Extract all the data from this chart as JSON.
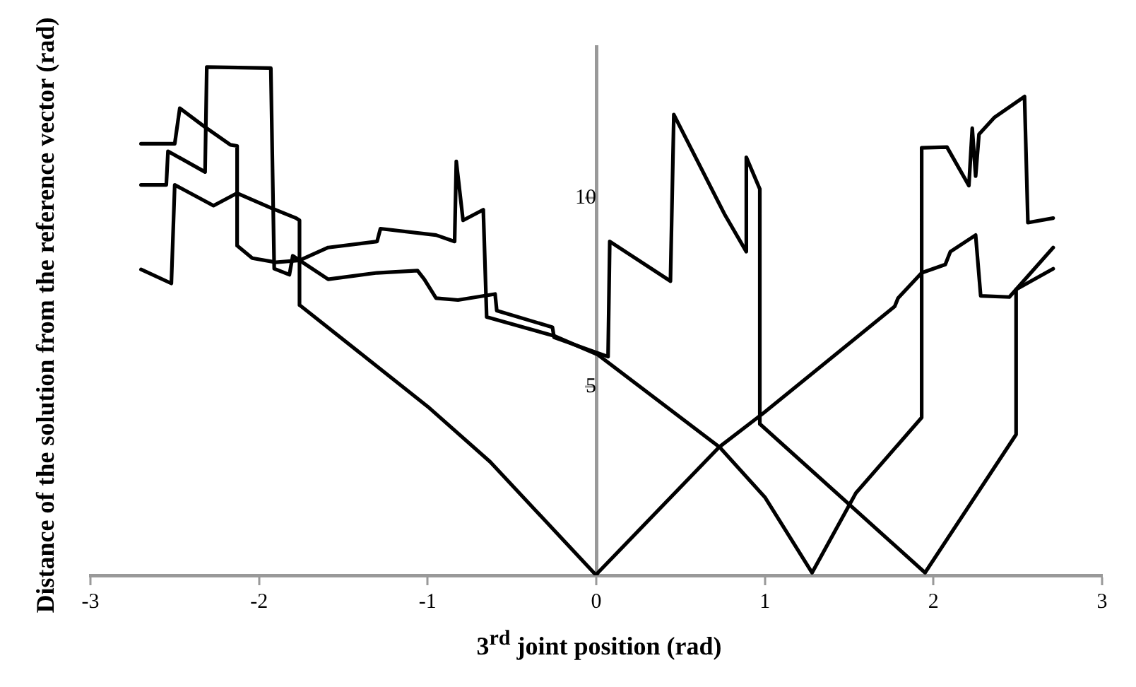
{
  "chart_data": {
    "type": "line",
    "xlabel": "3$^{rd}$ joint position (rad)",
    "ylabel": "Distance of the solution from the reference vector (rad)",
    "xlim": [
      -3,
      3
    ],
    "xticks": [
      -3,
      -2,
      -1,
      0,
      1,
      2,
      3
    ],
    "ylim": [
      0,
      14
    ],
    "yticks": [
      {
        "value": 0,
        "label": null
      },
      5,
      10
    ],
    "grid": false,
    "legend": false,
    "marker": "none",
    "line_style": "solid",
    "series": [
      {
        "color": "#000000",
        "x": [
          -2.7,
          -2.52,
          -2.5,
          -2.27,
          -2.13,
          -1.93,
          -1.78,
          -1.76,
          -1.76,
          -1,
          -0.63,
          0,
          0.01,
          0.73,
          0.99,
          1.77,
          1.79,
          1.93,
          2.07,
          2.1,
          2.25,
          2.28,
          2.45,
          2.49,
          2.71
        ],
        "values": [
          8.1,
          7.73,
          10.34,
          9.79,
          10.12,
          9.73,
          9.46,
          9.4,
          7.16,
          4.47,
          3.01,
          0,
          0.07,
          3.4,
          4.29,
          7.12,
          7.34,
          8.01,
          8.23,
          8.57,
          9.01,
          7.4,
          7.37,
          7.57,
          8.12
        ]
      },
      {
        "color": "#000000",
        "x": [
          -2.7,
          -2.5,
          -2.47,
          -2.33,
          -2.17,
          -2.13,
          -2.13,
          -2.04,
          -1.9,
          -1.76,
          -1.59,
          -1.3,
          -1.28,
          -0.95,
          -0.84,
          -0.83,
          -0.79,
          -0.67,
          -0.65,
          -0.25,
          0.01,
          0.73,
          1,
          1.28,
          1.54,
          1.93,
          1.93,
          2.08,
          2.21,
          2.23,
          2.25,
          2.27,
          2.36,
          2.54,
          2.56,
          2.71
        ],
        "values": [
          11.43,
          11.43,
          12.37,
          11.9,
          11.4,
          11.37,
          8.73,
          8.4,
          8.29,
          8.34,
          8.68,
          8.84,
          9.18,
          9.01,
          8.84,
          10.96,
          9.4,
          9.68,
          6.84,
          6.34,
          5.84,
          3.4,
          2.07,
          0.07,
          2.18,
          4.18,
          11.32,
          11.34,
          10.32,
          11.84,
          10.57,
          11.68,
          12.12,
          12.68,
          9.34,
          9.46
        ]
      },
      {
        "color": "#000000",
        "x": [
          -2.7,
          -2.55,
          -2.54,
          -2.32,
          -2.31,
          -1.93,
          -1.91,
          -1.82,
          -1.8,
          -1.59,
          -1.3,
          -1.06,
          -1.02,
          -0.95,
          -0.82,
          -0.6,
          -0.59,
          -0.26,
          -0.25,
          0.07,
          0.08,
          0.44,
          0.46,
          0.76,
          0.89,
          0.89,
          0.97,
          0.97,
          1.95,
          2.49,
          2.49,
          2.71
        ],
        "values": [
          10.34,
          10.34,
          11.23,
          10.68,
          13.46,
          13.43,
          8.12,
          7.96,
          8.46,
          7.84,
          8.01,
          8.07,
          7.84,
          7.34,
          7.29,
          7.45,
          7.01,
          6.57,
          6.3,
          5.79,
          8.84,
          7.79,
          12.2,
          9.57,
          8.57,
          11.07,
          10.23,
          4.01,
          0.07,
          3.73,
          7.57,
          8.68
        ]
      }
    ]
  }
}
